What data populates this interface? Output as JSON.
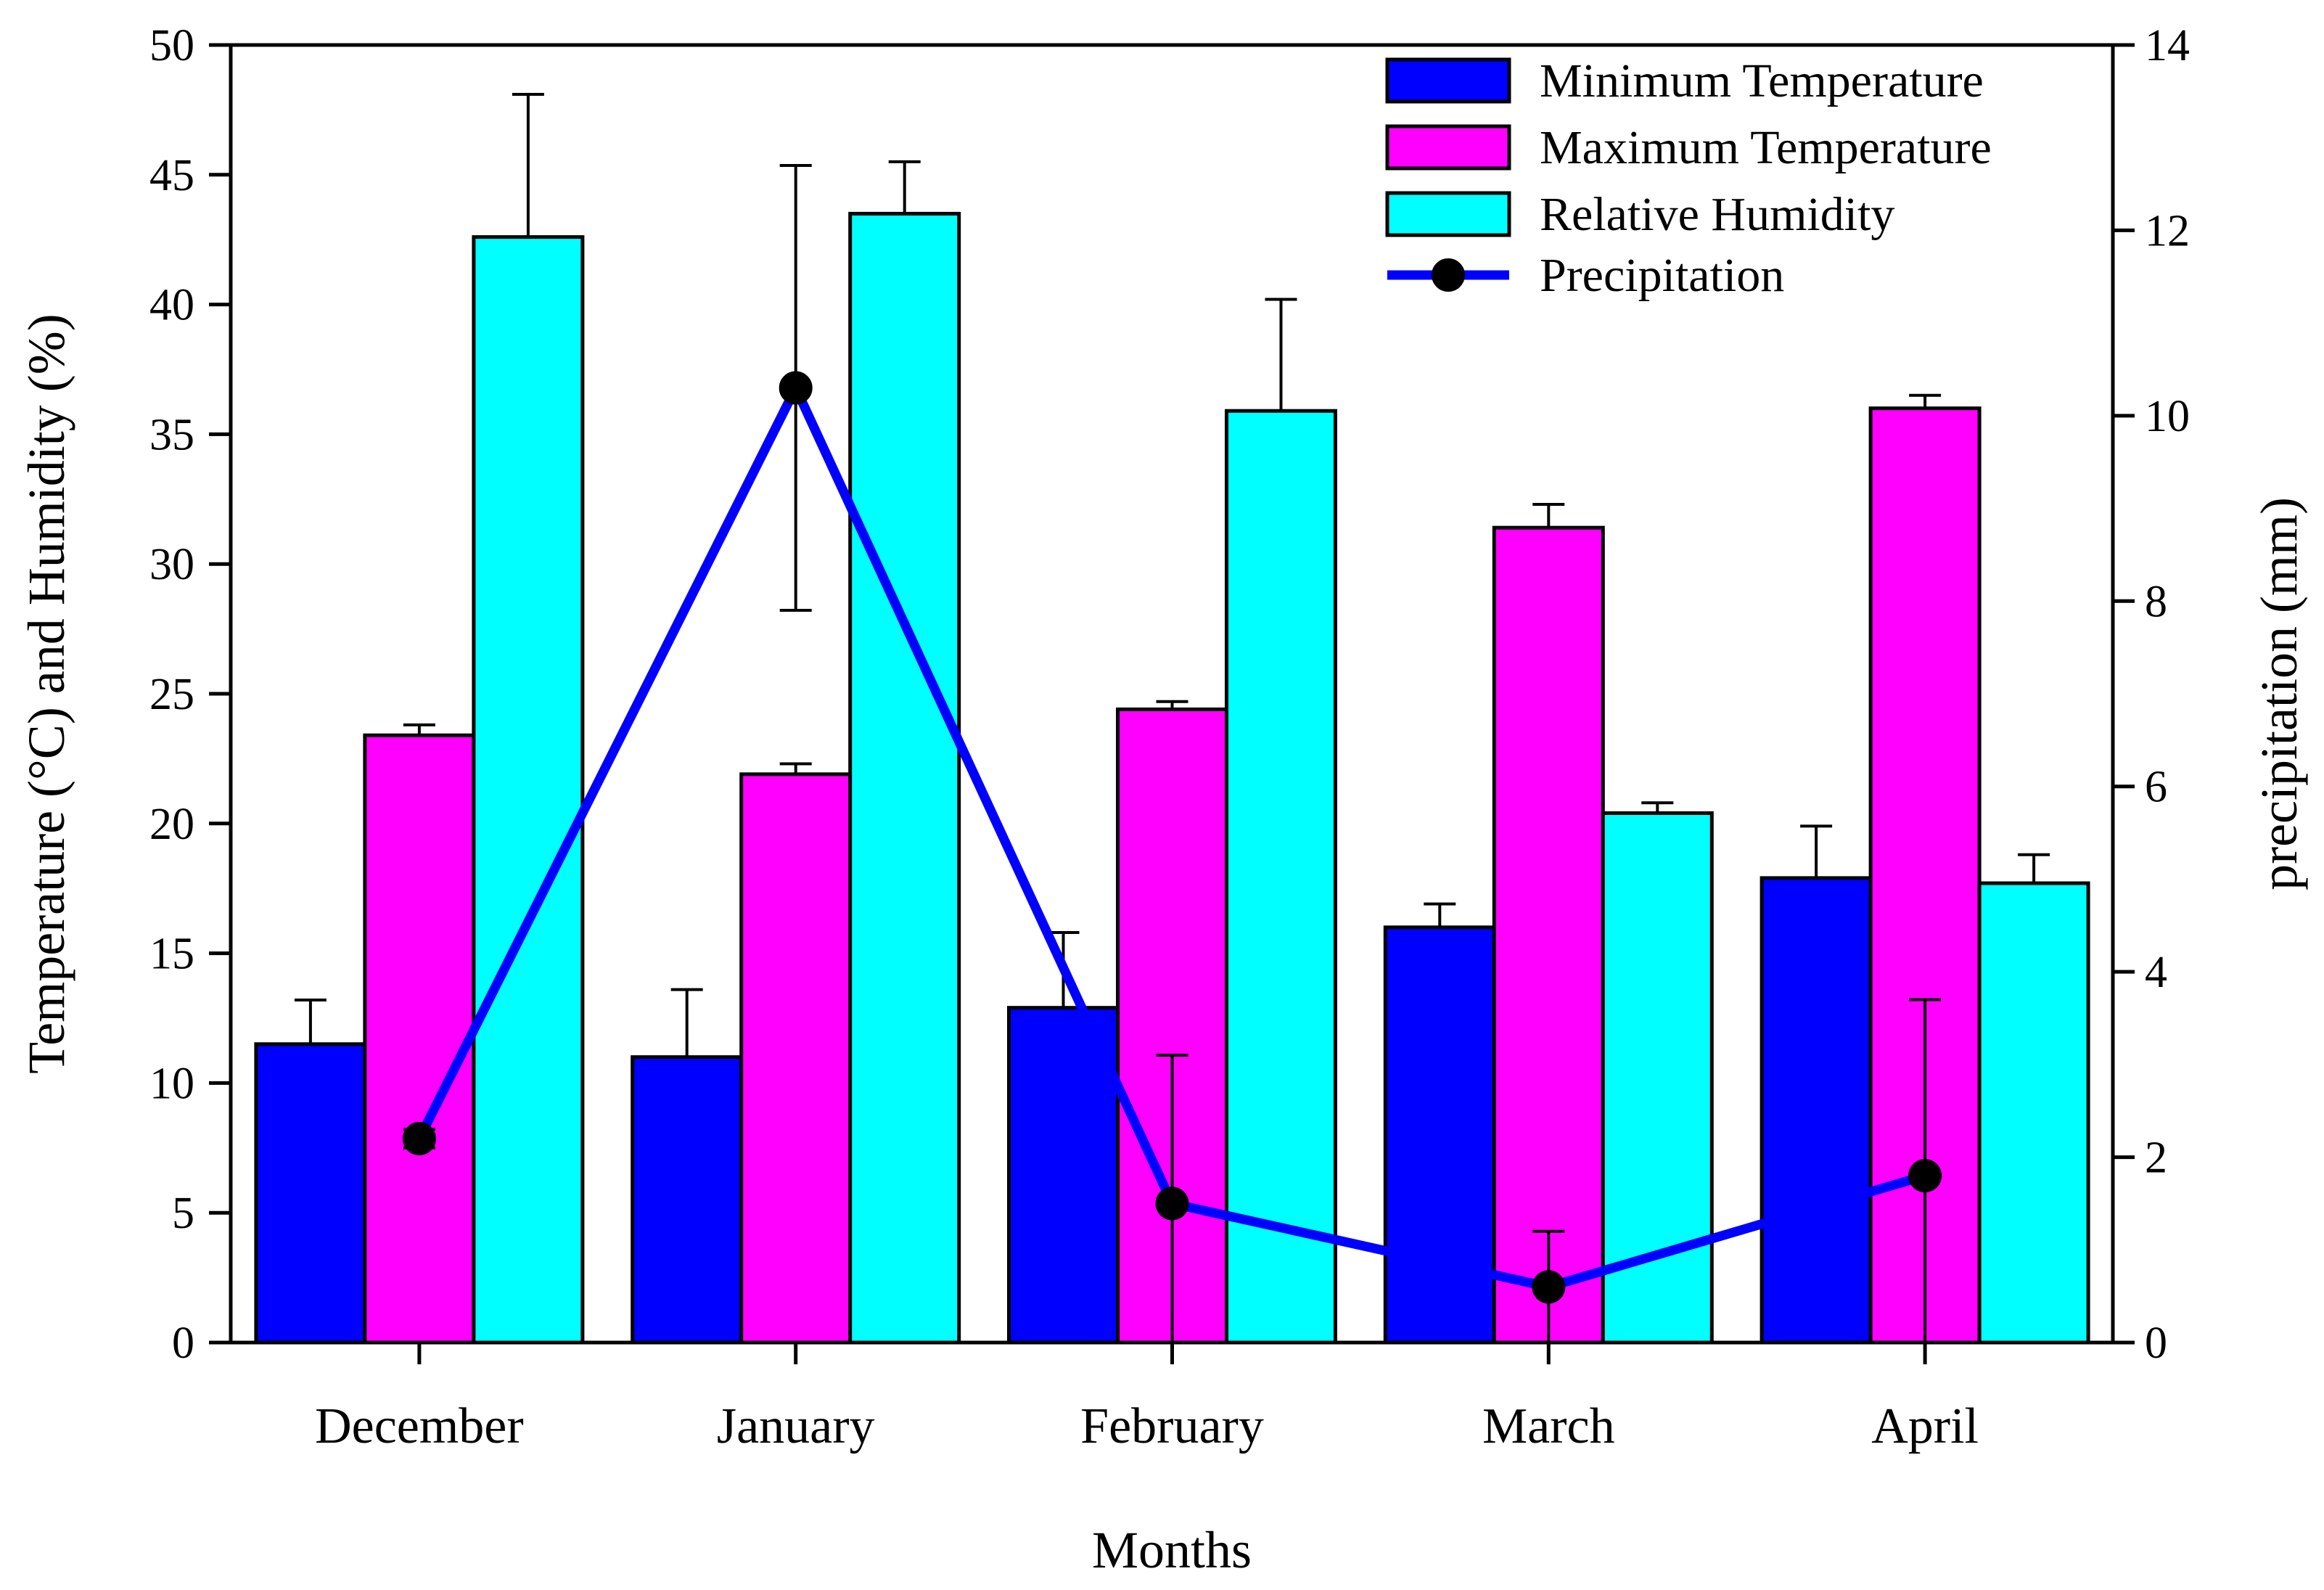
{
  "chart_data": {
    "type": "bar",
    "title": "",
    "xlabel": "Months",
    "ylabel": "Temperature (°C) and Humidity (%)",
    "y2label": "precipitation (mm)",
    "ylim": [
      0,
      50
    ],
    "y2lim": [
      0,
      14
    ],
    "yticks": [
      "0",
      "5",
      "10",
      "15",
      "20",
      "25",
      "30",
      "35",
      "40",
      "45",
      "50"
    ],
    "y2ticks": [
      "0",
      "2",
      "4",
      "6",
      "8",
      "10",
      "12",
      "14"
    ],
    "categories": [
      "December",
      "January",
      "February",
      "March",
      "April"
    ],
    "series": [
      {
        "name": "Minimum Temperature",
        "type": "bar",
        "axis": "left",
        "color": "#0000ff",
        "values": [
          11.5,
          11.0,
          12.9,
          16.0,
          17.9
        ],
        "errors": [
          1.7,
          2.6,
          2.9,
          0.9,
          2.0
        ]
      },
      {
        "name": "Maximum Temperature",
        "type": "bar",
        "axis": "left",
        "color": "#ff00ff",
        "values": [
          23.4,
          21.9,
          24.4,
          31.4,
          36.0
        ],
        "errors": [
          0.4,
          0.4,
          0.3,
          0.9,
          0.5
        ]
      },
      {
        "name": "Relative Humidity",
        "type": "bar",
        "axis": "left",
        "color": "#00ffff",
        "values": [
          42.6,
          43.5,
          35.9,
          20.4,
          17.7
        ],
        "errors": [
          5.5,
          2.0,
          4.3,
          0.4,
          1.1
        ]
      },
      {
        "name": "Precipitation",
        "type": "line",
        "axis": "right",
        "color": "#0000ff",
        "marker_color": "#000000",
        "values": [
          2.2,
          10.3,
          1.5,
          0.6,
          1.8
        ],
        "errors": [
          0.1,
          2.4,
          1.6,
          0.6,
          1.9
        ]
      }
    ],
    "legend": {
      "position": "top-right",
      "labels": [
        "Minimum Temperature",
        "Maximum Temperature",
        "Relative Humidity",
        "Precipitation"
      ]
    },
    "grid": false
  }
}
